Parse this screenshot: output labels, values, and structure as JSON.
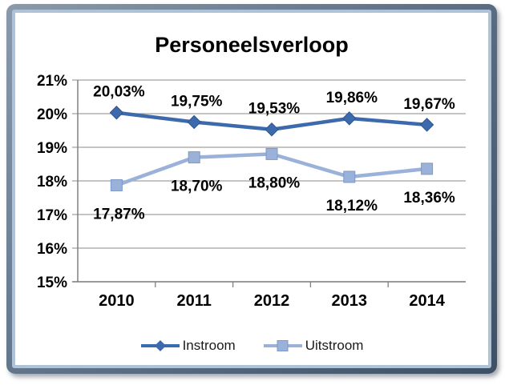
{
  "chart_data": {
    "type": "line",
    "title": "Personeelsverloop",
    "categories": [
      "2010",
      "2011",
      "2012",
      "2013",
      "2014"
    ],
    "series": [
      {
        "name": "Instroom",
        "values": [
          20.03,
          19.75,
          19.53,
          19.86,
          19.67
        ],
        "labels": [
          "20,03%",
          "19,75%",
          "19,53%",
          "19,86%",
          "19,67%"
        ],
        "color": "#3C6AAC",
        "marker_stroke": "#2E5590",
        "marker": "diamond",
        "label_position": "above"
      },
      {
        "name": "Uitstroom",
        "values": [
          17.87,
          18.7,
          18.8,
          18.12,
          18.36
        ],
        "labels": [
          "17,87%",
          "18,70%",
          "18,80%",
          "18,12%",
          "18,36%"
        ],
        "color": "#9AB1D9",
        "marker_stroke": "#7E99C8",
        "marker": "square",
        "label_position": "below"
      }
    ],
    "ylim": [
      15,
      21
    ],
    "ytick_step": 1,
    "ytick_labels": [
      "15%",
      "16%",
      "17%",
      "18%",
      "19%",
      "20%",
      "21%"
    ],
    "grid": true,
    "legend_position": "bottom",
    "colors": {
      "gridline": "#A0A0A0",
      "axis": "#808080",
      "label": "#000000",
      "frame_blue": "#AEC3D8"
    }
  }
}
